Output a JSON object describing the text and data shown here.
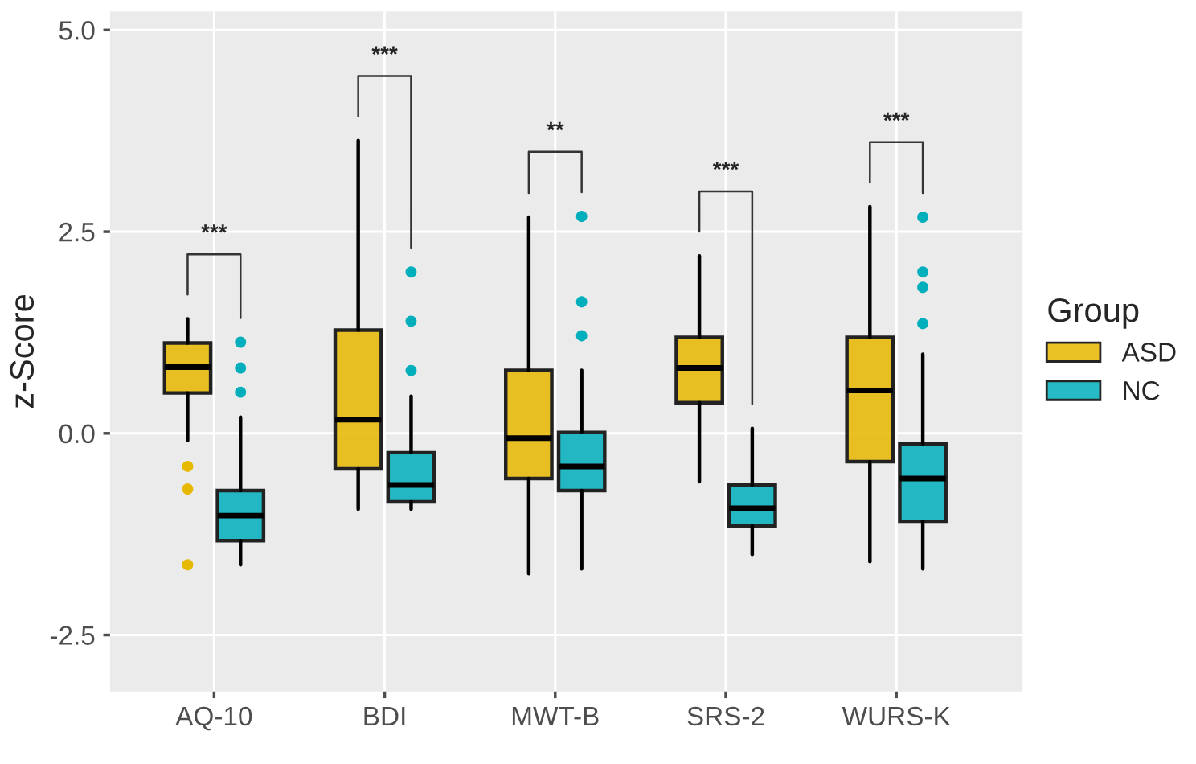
{
  "chart_data": {
    "type": "box",
    "ylabel": "z-Score",
    "legend_title": "Group",
    "legend": "right",
    "grid": true,
    "categories": [
      "AQ-10",
      "BDI",
      "MWT-B",
      "SRS-2",
      "WURS-K"
    ],
    "ylim": [
      -3.2,
      5.23
    ],
    "yticks": [
      -2.5,
      {
        "value": 0,
        "label": "0.0"
      },
      2.5,
      {
        "value": 5,
        "label": "5.0"
      }
    ],
    "series": [
      {
        "name": "ASD",
        "color": "#e7b800",
        "boxes": [
          {
            "low": -0.09,
            "q1": 0.5,
            "median": 0.82,
            "q3": 1.12,
            "high": 1.42,
            "outliers": [
              -0.41,
              -0.69,
              -1.63
            ]
          },
          {
            "low": -0.94,
            "q1": -0.44,
            "median": 0.17,
            "q3": 1.28,
            "high": 3.63
          },
          {
            "low": -1.74,
            "q1": -0.56,
            "median": -0.06,
            "q3": 0.78,
            "high": 2.68
          },
          {
            "low": -0.6,
            "q1": 0.38,
            "median": 0.81,
            "q3": 1.19,
            "high": 2.2
          },
          {
            "low": -1.59,
            "q1": -0.35,
            "median": 0.53,
            "q3": 1.19,
            "high": 2.81
          }
        ]
      },
      {
        "name": "NC",
        "color": "#00afbb",
        "boxes": [
          {
            "low": -1.63,
            "q1": -1.33,
            "median": -1.02,
            "q3": -0.71,
            "high": 0.2,
            "outliers": [
              0.51,
              0.81,
              1.13
            ]
          },
          {
            "low": -0.94,
            "q1": -0.85,
            "median": -0.64,
            "q3": -0.24,
            "high": 0.46,
            "outliers": [
              0.78,
              1.39,
              2.0
            ]
          },
          {
            "low": -1.68,
            "q1": -0.71,
            "median": -0.41,
            "q3": 0.01,
            "high": 0.78,
            "outliers": [
              1.21,
              1.63,
              2.69
            ]
          },
          {
            "low": -1.5,
            "q1": -1.15,
            "median": -0.93,
            "q3": -0.64,
            "high": 0.06
          },
          {
            "low": -1.68,
            "q1": -1.09,
            "median": -0.56,
            "q3": -0.13,
            "high": 0.98,
            "outliers": [
              1.36,
              1.81,
              2.0,
              2.68
            ]
          }
        ]
      }
    ],
    "annotations": [
      "***",
      "***",
      "**",
      "***",
      "***"
    ]
  }
}
